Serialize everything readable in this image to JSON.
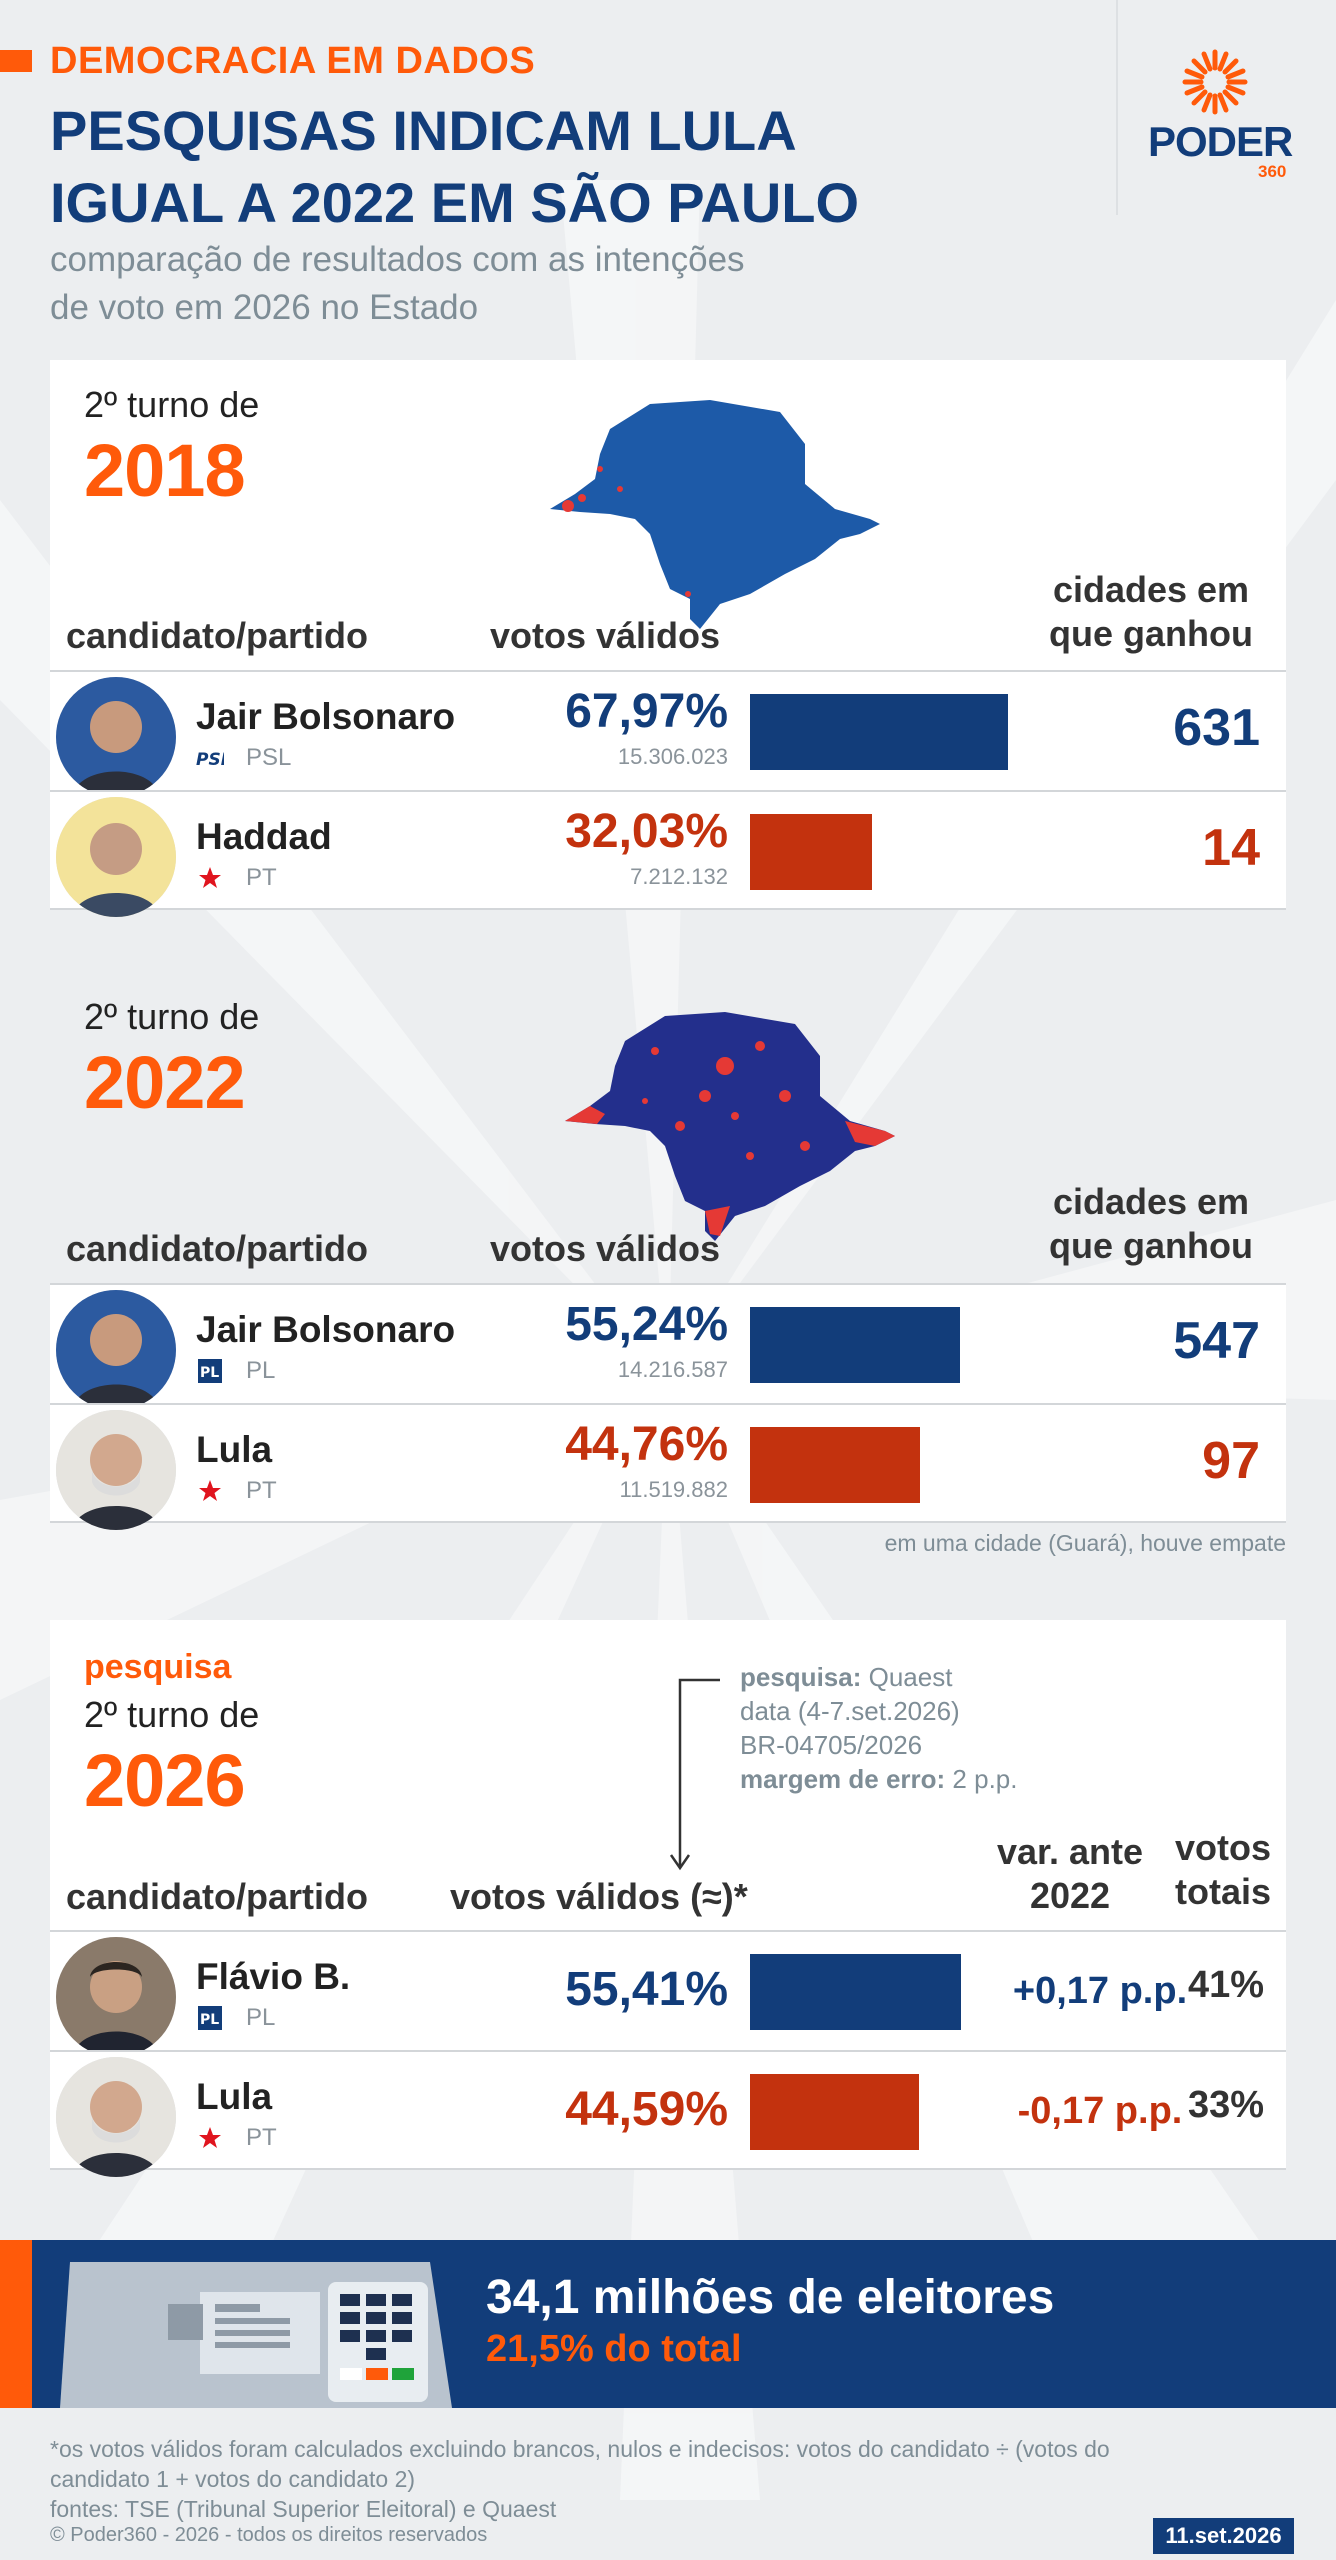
{
  "header": {
    "kicker": "DEMOCRACIA EM DADOS",
    "title_line1": "PESQUISAS INDICAM LULA",
    "title_line2": "IGUAL A 2022 EM SÃO PAULO",
    "subtitle_line1": "comparação de resultados com as intenções",
    "subtitle_line2": "de voto em 2026 no Estado",
    "logo_text": "PODER",
    "logo_sub": "360"
  },
  "colors": {
    "orange": "#ff5a0a",
    "blue": "#123d7a",
    "red": "#c3320e"
  },
  "columns": {
    "candidate": "candidato/partido",
    "valid_votes": "votos válidos",
    "valid_votes_approx": "votos válidos (≈)*",
    "cities_line1": "cidades em",
    "cities_line2": "que ganhou",
    "var_line1": "var. ante",
    "var_line2": "2022",
    "total_line1": "votos",
    "total_line2": "totais"
  },
  "chart_data": [
    {
      "type": "bar",
      "turno": "2º turno de",
      "year": "2018",
      "ylim": [
        0,
        100
      ],
      "rows": [
        {
          "name": "Jair Bolsonaro",
          "party": "PSL",
          "party_icon": "psl-logo-icon",
          "pct_label": "67,97%",
          "value": 67.97,
          "votes": "15.306.023",
          "cities": "631",
          "color": "blue"
        },
        {
          "name": "Haddad",
          "party": "PT",
          "party_icon": "pt-star-icon",
          "pct_label": "32,03%",
          "value": 32.03,
          "votes": "7.212.132",
          "cities": "14",
          "color": "red"
        }
      ]
    },
    {
      "type": "bar",
      "turno": "2º turno de",
      "year": "2022",
      "ylim": [
        0,
        100
      ],
      "rows": [
        {
          "name": "Jair Bolsonaro",
          "party": "PL",
          "party_icon": "pl-logo-icon",
          "pct_label": "55,24%",
          "value": 55.24,
          "votes": "14.216.587",
          "cities": "547",
          "color": "blue"
        },
        {
          "name": "Lula",
          "party": "PT",
          "party_icon": "pt-star-icon",
          "pct_label": "44,76%",
          "value": 44.76,
          "votes": "11.519.882",
          "cities": "97",
          "color": "red"
        }
      ],
      "note": "em uma cidade (Guará), houve empate"
    },
    {
      "type": "bar",
      "tag": "pesquisa",
      "turno": "2º turno de",
      "year": "2026",
      "ylim": [
        0,
        100
      ],
      "rows": [
        {
          "name": "Flávio B.",
          "party": "PL",
          "party_icon": "pl-logo-icon",
          "pct_label": "55,41%",
          "value": 55.41,
          "var": "+0,17 p.p.",
          "total": "41%",
          "color": "blue"
        },
        {
          "name": "Lula",
          "party": "PT",
          "party_icon": "pt-star-icon",
          "pct_label": "44,59%",
          "value": 44.59,
          "var": "-0,17 p.p.",
          "total": "33%",
          "color": "red"
        }
      ]
    }
  ],
  "survey": {
    "l1_label": "pesquisa:",
    "l1_value": "Quaest",
    "l2": "data (4-7.set.2026)",
    "l3": "BR-04705/2026",
    "l4_label": "margem de erro:",
    "l4_value": "2 p.p."
  },
  "banner": {
    "title": "34,1 milhões de eleitores",
    "subtitle": "21,5% do total",
    "icon": "ballot-box-icon"
  },
  "footer": {
    "note_line1": "*os votos válidos foram calculados excluindo brancos, nulos e indecisos: votos do candidato ÷ (votos do",
    "note_line2": "candidato 1 + votos do candidato 2)",
    "sources": "fontes: TSE (Tribunal Superior Eleitoral) e Quaest",
    "copyright": "© Poder360 - 2026 - todos os direitos reservados",
    "date": "11.set.2026"
  }
}
